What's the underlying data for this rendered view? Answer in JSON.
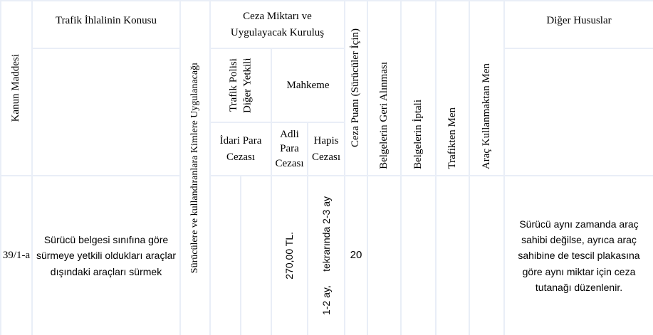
{
  "headers": {
    "kanun_maddesi": "Kanun Maddesi",
    "konu": "Trafik İhlalinin Konusu",
    "kimlere": "Sürücülere ve kullandıranlara Kimlere Uygulanacağı",
    "ceza_miktari": "Ceza Miktarı ve Uygulayacak Kuruluş",
    "trafik_polisi": "Trafik Polisi Diğer Yetkili",
    "mahkeme": "Mahkeme",
    "idari_para": "İdari Para Cezası",
    "adli_para": "Adli Para Cezası",
    "hapis": "Hapis Cezası",
    "ceza_puani": "Ceza Puanı (Sürücüler İçin)",
    "geri_alinmasi": "Belgelerin Geri Alınması",
    "iptali": "Belgelerin İptali",
    "trafikten_men": "Trafikten Men",
    "arac_kullanmaktan_men": "Araç Kullanmaktan Men",
    "diger": "Diğer Hususlar"
  },
  "row": {
    "madde": "39/1-a",
    "konu": "Sürücü belgesi sınıfına göre sürmeye yetkili oldukları araçlar dışındaki araçları sürmek",
    "adli_para": "270,00 TL.",
    "hapis": "1-2 ay,     tekrarında 2-3 ay",
    "ceza_puani": "20",
    "diger": "Sürücü aynı zamanda araç sahibi değilse, ayrıca araç sahibine de tescil plakasına göre aynı miktar için ceza tutanağı düzenlenir."
  }
}
